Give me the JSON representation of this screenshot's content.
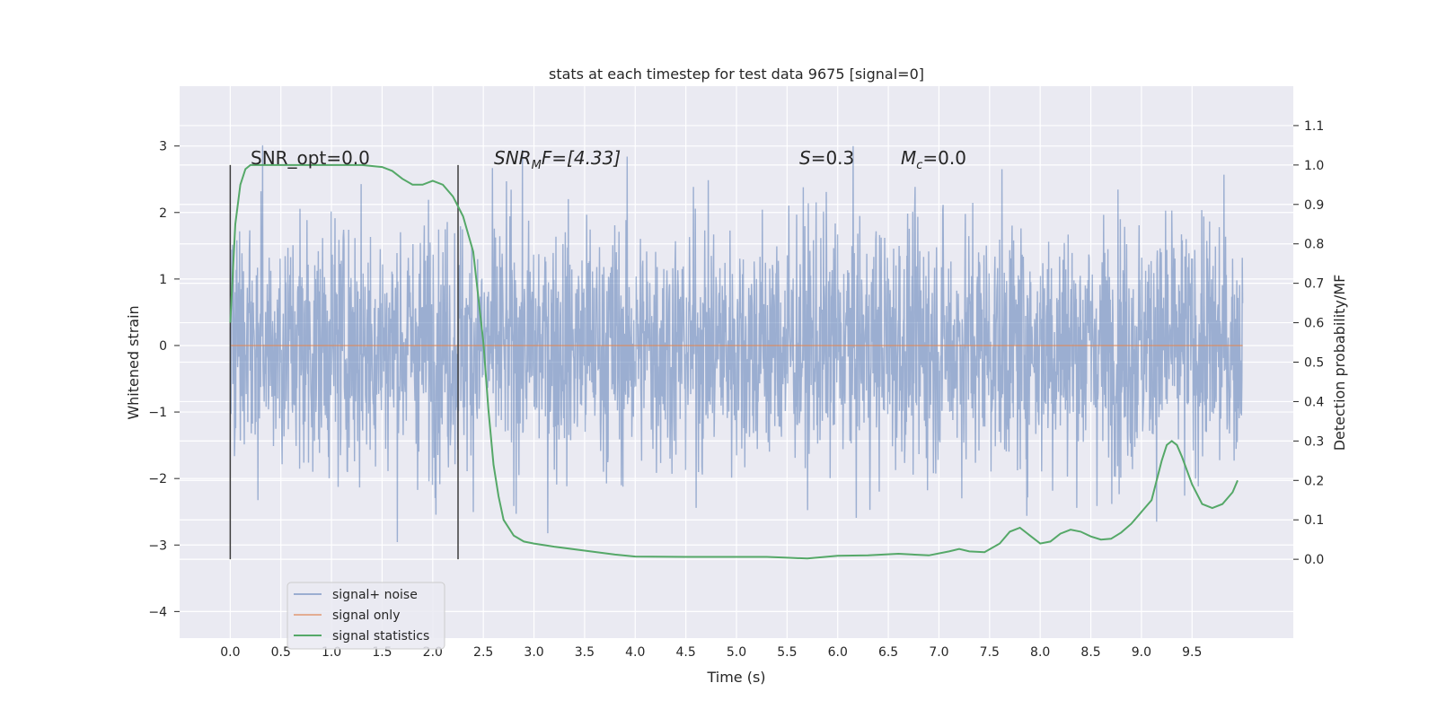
{
  "chart_data": {
    "type": "line",
    "title": "stats at each timestep for test data 9675 [signal=0]",
    "xlabel": "Time (s)",
    "ylabel": "Whitened strain",
    "y2label": "Detection probability/MF",
    "xlim": [
      -0.5,
      10.5
    ],
    "ylim": [
      -4.4,
      3.9
    ],
    "y2lim": [
      -0.2,
      1.2
    ],
    "x_ticks": [
      "0.0",
      "0.5",
      "1.0",
      "1.5",
      "2.0",
      "2.5",
      "3.0",
      "3.5",
      "4.0",
      "4.5",
      "5.0",
      "5.5",
      "6.0",
      "6.5",
      "7.0",
      "7.5",
      "8.0",
      "8.5",
      "9.0",
      "9.5"
    ],
    "y_ticks": [
      "3",
      "2",
      "1",
      "0",
      "−1",
      "−2",
      "−3",
      "−4"
    ],
    "y2_ticks": [
      "1.1",
      "1.0",
      "0.9",
      "0.8",
      "0.7",
      "0.6",
      "0.5",
      "0.4",
      "0.3",
      "0.2",
      "0.1",
      "0.0"
    ],
    "grid": true,
    "legend_position": "lower-left",
    "annotations": {
      "snr_opt": "SNR_opt=0.0",
      "snr_mf_base": "SNR",
      "snr_mf_sub": "M",
      "snr_mf_rest": "F=[4.33]",
      "s_label": "S",
      "s_value": "=0.3",
      "mc_base": "M",
      "mc_sub": "c",
      "mc_value": "=0.0"
    },
    "vlines": [
      0.0,
      2.25
    ],
    "series": [
      {
        "name": "signal+ noise",
        "color": "#4c72b0",
        "description_range": [
          -4.0,
          3.6
        ],
        "x_range": [
          0.0,
          10.0
        ]
      },
      {
        "name": "signal only",
        "color": "#dd8452",
        "x": [
          0.0,
          10.0
        ],
        "y": [
          0.0,
          0.0
        ]
      },
      {
        "name": "signal statistics",
        "color": "#55a868",
        "x": [
          0.0,
          0.05,
          0.1,
          0.15,
          0.2,
          0.3,
          0.5,
          0.8,
          1.0,
          1.3,
          1.5,
          1.6,
          1.7,
          1.8,
          1.9,
          2.0,
          2.1,
          2.2,
          2.3,
          2.4,
          2.5,
          2.55,
          2.6,
          2.65,
          2.7,
          2.8,
          2.9,
          3.0,
          3.2,
          3.5,
          3.8,
          4.0,
          4.5,
          5.0,
          5.3,
          5.5,
          5.7,
          6.0,
          6.3,
          6.6,
          6.9,
          7.1,
          7.2,
          7.3,
          7.45,
          7.6,
          7.7,
          7.8,
          7.9,
          8.0,
          8.1,
          8.2,
          8.3,
          8.4,
          8.5,
          8.6,
          8.7,
          8.8,
          8.9,
          9.0,
          9.1,
          9.2,
          9.25,
          9.3,
          9.35,
          9.4,
          9.5,
          9.6,
          9.7,
          9.8,
          9.9,
          9.95
        ],
        "y": [
          0.6,
          0.85,
          0.95,
          0.99,
          1.0,
          1.0,
          1.0,
          1.0,
          1.0,
          1.0,
          0.995,
          0.985,
          0.965,
          0.95,
          0.95,
          0.96,
          0.95,
          0.92,
          0.87,
          0.78,
          0.55,
          0.38,
          0.24,
          0.16,
          0.1,
          0.06,
          0.045,
          0.04,
          0.032,
          0.022,
          0.012,
          0.007,
          0.006,
          0.006,
          0.006,
          0.004,
          0.002,
          0.009,
          0.01,
          0.014,
          0.01,
          0.02,
          0.026,
          0.02,
          0.018,
          0.04,
          0.07,
          0.08,
          0.06,
          0.04,
          0.045,
          0.065,
          0.075,
          0.07,
          0.058,
          0.05,
          0.052,
          0.068,
          0.09,
          0.12,
          0.15,
          0.25,
          0.29,
          0.3,
          0.29,
          0.26,
          0.19,
          0.14,
          0.13,
          0.14,
          0.17,
          0.2
        ]
      }
    ]
  }
}
